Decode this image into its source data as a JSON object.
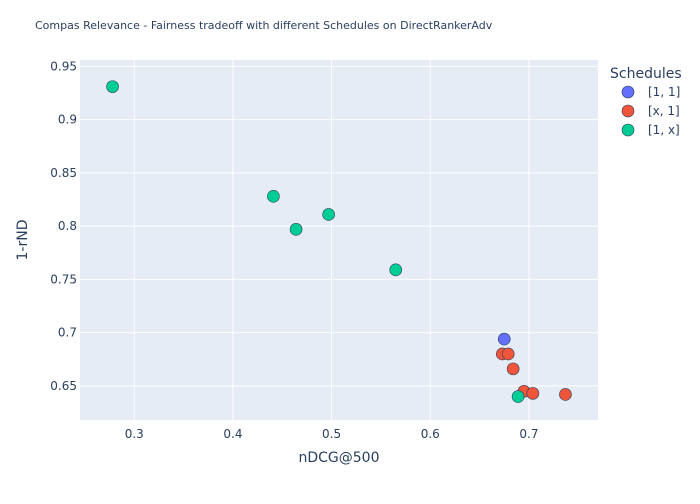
{
  "chart_data": {
    "type": "scatter",
    "title": "Compas Relevance - Fairness tradeoff with different Schedules on DirectRankerAdv",
    "xlabel": "nDCG@500",
    "ylabel": "1-rND",
    "xlim": [
      0.245,
      0.77
    ],
    "ylim": [
      0.618,
      0.956
    ],
    "xticks": [
      0.3,
      0.4,
      0.5,
      0.6,
      0.7
    ],
    "xtick_labels": [
      "0.3",
      "0.4",
      "0.5",
      "0.6",
      "0.7"
    ],
    "yticks": [
      0.65,
      0.7,
      0.75,
      0.8,
      0.85,
      0.9,
      0.95
    ],
    "ytick_labels": [
      "0.65",
      "0.7",
      "0.75",
      "0.8",
      "0.85",
      "0.9",
      "0.95"
    ],
    "grid": true,
    "legend_title": "Schedules",
    "legend_position": "top-right",
    "series": [
      {
        "name": "[1, 1]",
        "color": "#636efa",
        "points": [
          [
            0.675,
            0.694
          ]
        ]
      },
      {
        "name": "[x, 1]",
        "color": "#ef553b",
        "points": [
          [
            0.673,
            0.68
          ],
          [
            0.679,
            0.68
          ],
          [
            0.684,
            0.666
          ],
          [
            0.695,
            0.645
          ],
          [
            0.704,
            0.643
          ],
          [
            0.737,
            0.642
          ]
        ]
      },
      {
        "name": "[1, x]",
        "color": "#00cc96",
        "points": [
          [
            0.278,
            0.931
          ],
          [
            0.441,
            0.828
          ],
          [
            0.464,
            0.797
          ],
          [
            0.497,
            0.811
          ],
          [
            0.565,
            0.759
          ],
          [
            0.689,
            0.64
          ]
        ]
      }
    ]
  }
}
